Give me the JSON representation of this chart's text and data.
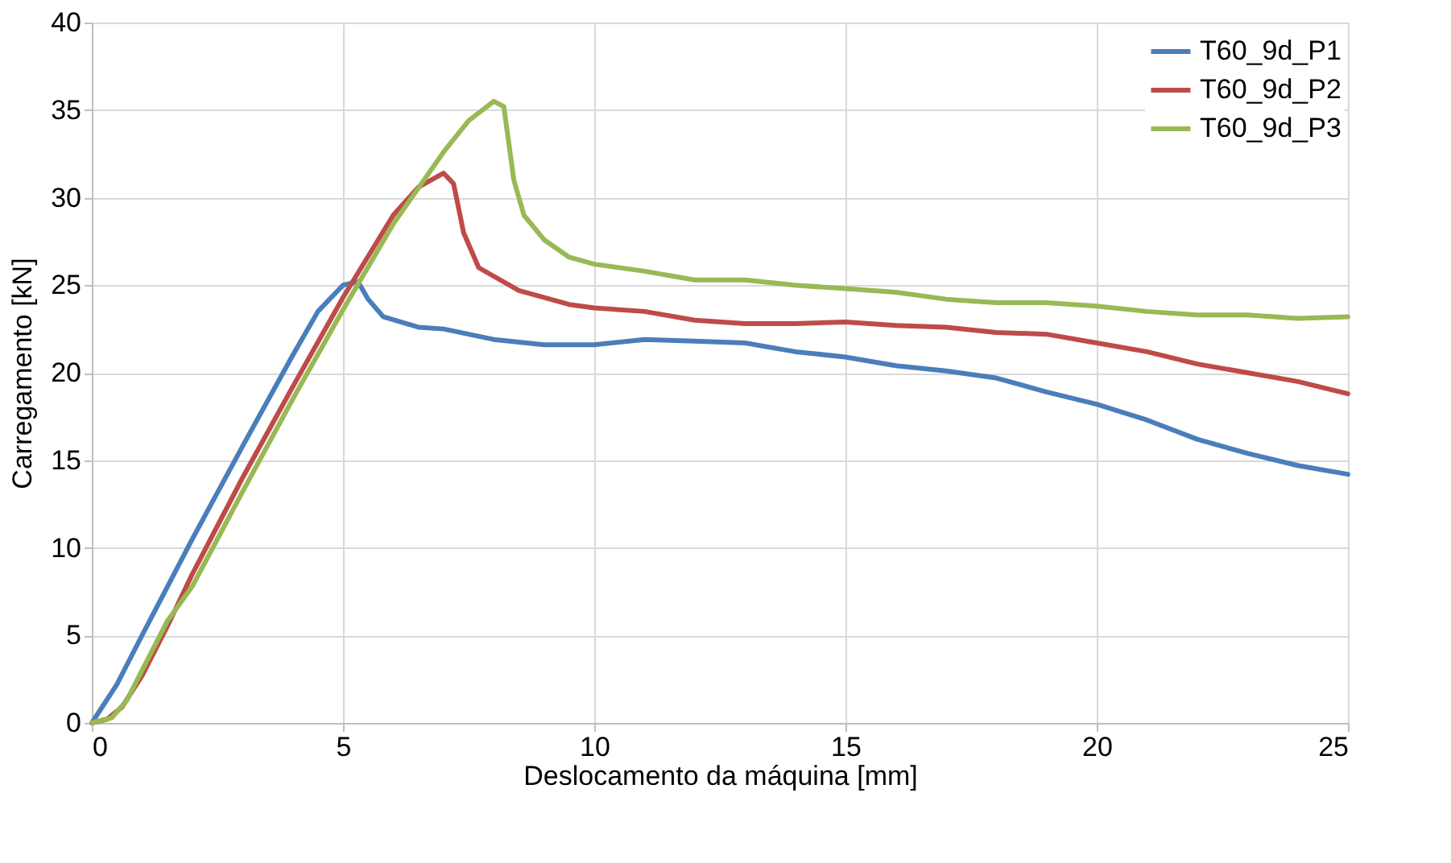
{
  "chart_data": {
    "type": "line",
    "xlabel": "Deslocamento da máquina [mm]",
    "ylabel": "Carregamento [kN]",
    "xlim": [
      0,
      25
    ],
    "xticks": [
      0,
      5,
      10,
      15,
      20,
      25
    ],
    "ylim": [
      0,
      40
    ],
    "yticks": [
      0,
      5,
      10,
      15,
      20,
      25,
      30,
      35,
      40
    ],
    "grid": true,
    "legend": "top right",
    "marker": "none",
    "line_style": "solid",
    "series": [
      {
        "name": "T60_9d_P1",
        "color": "#4a7ebb",
        "x": [
          0,
          0.5,
          1,
          2,
          3,
          4,
          4.5,
          5,
          5.3,
          5.5,
          5.8,
          6.5,
          7,
          8,
          9,
          10,
          11,
          12,
          13,
          14,
          15,
          16,
          17,
          18,
          19,
          20,
          21,
          22,
          23,
          24,
          25
        ],
        "values": [
          0,
          2.2,
          5,
          10.5,
          15.8,
          21,
          23.5,
          25,
          25.2,
          24.2,
          23.2,
          22.6,
          22.5,
          21.9,
          21.6,
          21.6,
          21.9,
          21.8,
          21.7,
          21.2,
          20.9,
          20.4,
          20.1,
          19.7,
          18.9,
          18.2,
          17.3,
          16.2,
          15.4,
          14.7,
          14.2
        ]
      },
      {
        "name": "T60_9d_P2",
        "color": "#be4b48",
        "x": [
          0,
          0.3,
          0.6,
          1,
          1.5,
          2,
          3,
          4,
          5,
          6,
          6.5,
          7,
          7.2,
          7.4,
          7.7,
          8.5,
          9.5,
          10,
          11,
          12,
          13,
          14,
          15,
          16,
          17,
          18,
          19,
          20,
          21,
          22,
          23,
          24,
          25
        ],
        "values": [
          0,
          0.2,
          0.9,
          2.7,
          5.5,
          8.5,
          14,
          19.2,
          24.3,
          29,
          30.6,
          31.4,
          30.8,
          28,
          26,
          24.7,
          23.9,
          23.7,
          23.5,
          23,
          22.8,
          22.8,
          22.9,
          22.7,
          22.6,
          22.3,
          22.2,
          21.7,
          21.2,
          20.5,
          20,
          19.5,
          18.8
        ]
      },
      {
        "name": "T60_9d_P3",
        "color": "#98b954",
        "x": [
          0,
          0.4,
          0.7,
          1,
          1.5,
          2,
          3,
          4,
          5,
          6,
          7,
          7.5,
          8,
          8.2,
          8.4,
          8.6,
          9,
          9.5,
          10,
          11,
          12,
          13,
          14,
          15,
          16,
          17,
          18,
          19,
          20,
          21,
          22,
          23,
          24,
          25
        ],
        "values": [
          0,
          0.3,
          1.3,
          3,
          5.8,
          7.8,
          13.2,
          18.5,
          23.6,
          28.5,
          32.6,
          34.4,
          35.5,
          35.2,
          31,
          29,
          27.6,
          26.6,
          26.2,
          25.8,
          25.3,
          25.3,
          25,
          24.8,
          24.6,
          24.2,
          24,
          24,
          23.8,
          23.5,
          23.3,
          23.3,
          23.1,
          23.2
        ]
      }
    ]
  }
}
